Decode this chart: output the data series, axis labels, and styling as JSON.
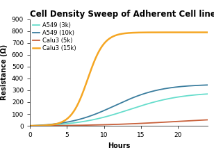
{
  "title": "Cell Density Sweep of Adherent Cell lines",
  "xlabel": "Hours",
  "ylabel": "Resistance (Ω)",
  "xlim": [
    0,
    24
  ],
  "ylim": [
    0,
    900
  ],
  "yticks": [
    0,
    100,
    200,
    300,
    400,
    500,
    600,
    700,
    800,
    900
  ],
  "xticks": [
    0,
    5,
    10,
    15,
    20
  ],
  "series": [
    {
      "label": "A549 (3k)",
      "color": "#66ddcc",
      "linewidth": 1.3,
      "y_max": 290,
      "x_mid": 13.5,
      "k": 0.28
    },
    {
      "label": "A549 (10k)",
      "color": "#3a7d9e",
      "linewidth": 1.3,
      "y_max": 360,
      "x_mid": 11.5,
      "k": 0.32
    },
    {
      "label": "Calu3 (5k)",
      "color": "#c8603a",
      "linewidth": 1.3,
      "y_max": 78,
      "x_mid": 20,
      "k": 0.18
    },
    {
      "label": "Calu3 (15k)",
      "color": "#f5a623",
      "linewidth": 1.8,
      "y_max": 790,
      "x_mid": 7.8,
      "k": 0.9
    }
  ],
  "background_color": "#ffffff",
  "title_fontsize": 8.5,
  "axis_fontsize": 7,
  "tick_fontsize": 6.5,
  "legend_fontsize": 6
}
